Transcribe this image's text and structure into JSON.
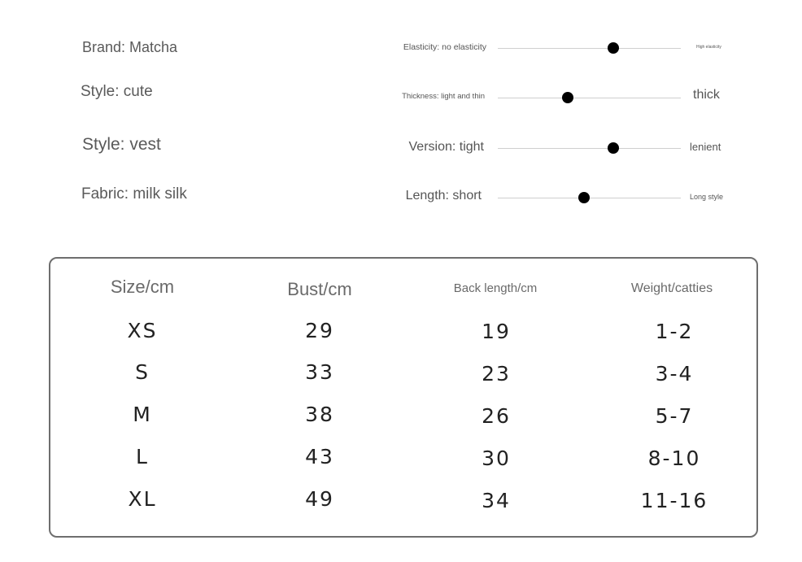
{
  "attributes": [
    {
      "label": "Brand: Matcha"
    },
    {
      "label": "Style: cute"
    },
    {
      "label": "Style: vest"
    },
    {
      "label": "Fabric: milk silk"
    }
  ],
  "scales": [
    {
      "left_label": "Elasticity: no elasticity",
      "right_label": "High elasticity",
      "level_percent": 63
    },
    {
      "left_label": "Thickness: light and thin",
      "right_label": "thick",
      "level_percent": 38
    },
    {
      "left_label": "Version: tight",
      "right_label": "lenient",
      "level_percent": 63
    },
    {
      "left_label": "Length: short",
      "right_label": "Long style",
      "level_percent": 47
    }
  ],
  "size_table": {
    "headers": [
      "Size/cm",
      "Bust/cm",
      "Back length/cm",
      "Weight/catties"
    ],
    "rows": [
      [
        "XS",
        "29",
        "19",
        "1-2"
      ],
      [
        "S",
        "33",
        "23",
        "3-4"
      ],
      [
        "M",
        "38",
        "26",
        "5-7"
      ],
      [
        "L",
        "43",
        "30",
        "8-10"
      ],
      [
        "XL",
        "49",
        "34",
        "11-16"
      ]
    ]
  }
}
